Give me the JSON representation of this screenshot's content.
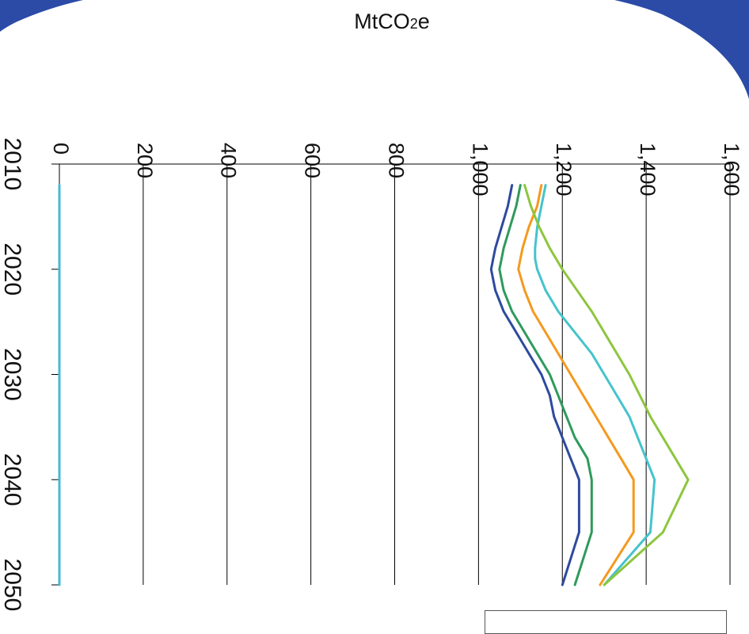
{
  "page": {
    "unit_title_main": "MtCO",
    "unit_title_sub": "2",
    "unit_title_end": "e"
  },
  "colors": {
    "corner": "#2b4ba7",
    "grid": "#000000",
    "background": "#ffffff"
  },
  "chart_data": {
    "type": "line",
    "orientation": "rotated 90 degrees clockwise: value axis runs left-to-right across the top, years run top-to-bottom",
    "value_axis": {
      "label": "MtCO2e",
      "ticks": [
        "0",
        "200",
        "400",
        "600",
        "800",
        "1,000",
        "1,200",
        "1,400",
        "1,600"
      ],
      "range": [
        0,
        1600
      ],
      "gridlines": true
    },
    "year_axis": {
      "ticks": [
        "2010",
        "2020",
        "2030",
        "2040",
        "2050"
      ],
      "range": [
        2010,
        2050
      ]
    },
    "x": [
      2012,
      2014,
      2016,
      2018,
      2019,
      2020,
      2022,
      2024,
      2026,
      2028,
      2030,
      2032,
      2034,
      2036,
      2038,
      2040,
      2045,
      2050
    ],
    "series": [
      {
        "color": "#2e4a9e",
        "values": [
          1080,
          1070,
          1055,
          1040,
          1035,
          1030,
          1040,
          1060,
          1090,
          1120,
          1150,
          1170,
          1180,
          1200,
          1220,
          1240,
          1240,
          1200
        ]
      },
      {
        "color": "#2f9a5c",
        "values": [
          1100,
          1090,
          1075,
          1060,
          1055,
          1050,
          1060,
          1080,
          1110,
          1140,
          1170,
          1190,
          1210,
          1230,
          1260,
          1270,
          1270,
          1230
        ]
      },
      {
        "color": "#f39a1f",
        "values": [
          1150,
          1140,
          1120,
          1105,
          1100,
          1095,
          1110,
          1130,
          1160,
          1190,
          1220,
          1250,
          1280,
          1310,
          1340,
          1370,
          1370,
          1290
        ]
      },
      {
        "color": "#45c3cc",
        "values": [
          1160,
          1150,
          1140,
          1135,
          1135,
          1140,
          1160,
          1190,
          1230,
          1270,
          1300,
          1330,
          1360,
          1380,
          1400,
          1420,
          1410,
          1300
        ]
      },
      {
        "color": "#8dc63f",
        "values": [
          1110,
          1125,
          1145,
          1170,
          1185,
          1200,
          1235,
          1270,
          1300,
          1330,
          1360,
          1385,
          1410,
          1440,
          1470,
          1500,
          1440,
          1300
        ]
      },
      {
        "color": "#45b9d6",
        "values": [
          0,
          0,
          0,
          0,
          0,
          0,
          0,
          0,
          0,
          0,
          0,
          0,
          0,
          0,
          0,
          0,
          0,
          0
        ]
      }
    ]
  }
}
